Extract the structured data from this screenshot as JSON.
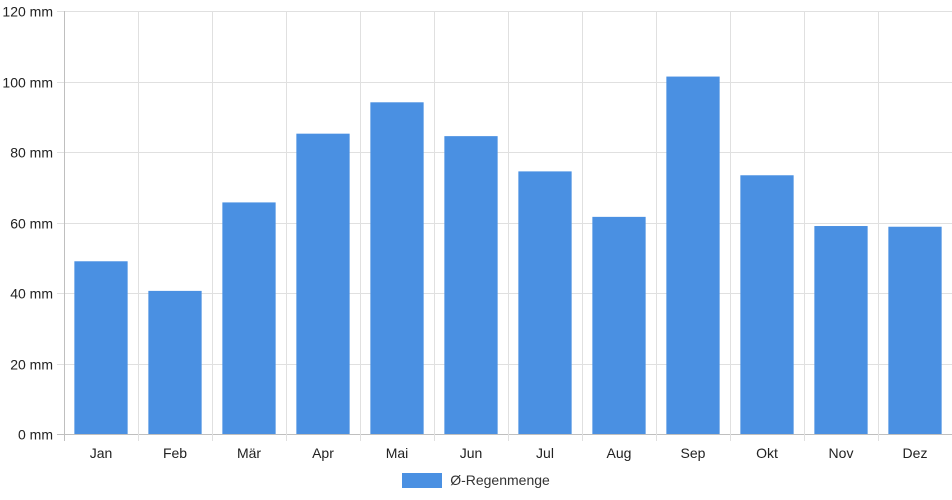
{
  "chart_data": {
    "type": "bar",
    "title": "",
    "xlabel": "",
    "ylabel": "",
    "categories": [
      "Jan",
      "Feb",
      "Mär",
      "Apr",
      "Mai",
      "Jun",
      "Jul",
      "Aug",
      "Sep",
      "Okt",
      "Nov",
      "Dez"
    ],
    "series": [
      {
        "name": "Ø-Regenmenge",
        "values": [
          49,
          40.6,
          65.7,
          85.2,
          94.1,
          84.5,
          74.5,
          61.6,
          101.4,
          73.4,
          59,
          58.8
        ]
      }
    ],
    "ylim": [
      0,
      120
    ],
    "yticks": [
      0,
      20,
      40,
      60,
      80,
      100,
      120
    ],
    "unit": "mm",
    "grid": true,
    "legend_position": "bottom",
    "bar_color": "#4a90e2",
    "grid_color": "#e0e0e0"
  }
}
